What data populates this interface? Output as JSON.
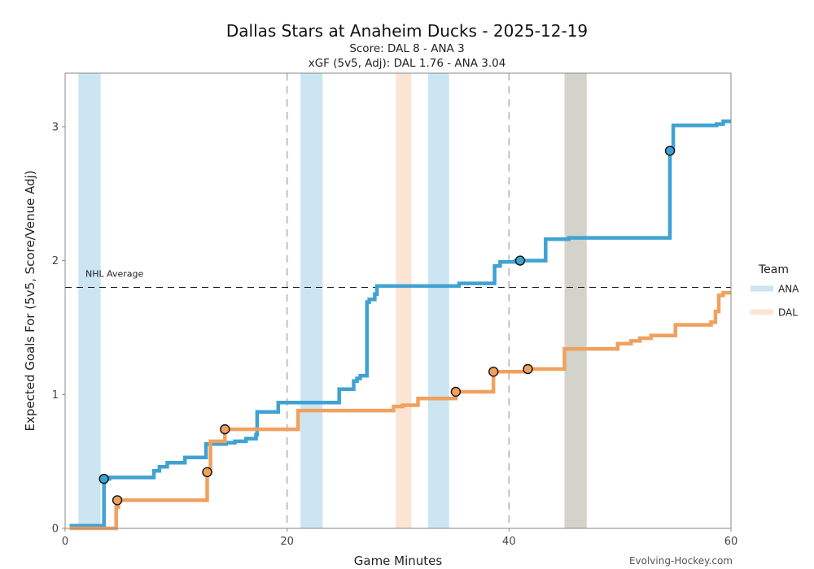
{
  "chart_data": {
    "type": "line",
    "title": "Dallas Stars at Anaheim Ducks - 2025-12-19",
    "subtitle_score": "Score: DAL 8 - ANA 3",
    "subtitle_xgf": "xGF (5v5, Adj): DAL 1.76 - ANA 3.04",
    "xlabel": "Game Minutes",
    "ylabel": "Expected Goals For (5v5, Score/Venue Adj)",
    "xlim": [
      0,
      60
    ],
    "ylim": [
      0,
      3.4
    ],
    "xticks": [
      0,
      20,
      40,
      60
    ],
    "yticks": [
      0,
      1,
      2,
      3
    ],
    "period_lines": [
      20,
      40
    ],
    "reference_line": {
      "y": 1.8,
      "label": "NHL Average"
    },
    "legend": {
      "title": "Team",
      "position": "right"
    },
    "source": "Evolving-Hockey.com",
    "shaded_intervals": [
      {
        "team": "ANA",
        "start": 1.2,
        "end": 3.2,
        "color": "#cce5f2"
      },
      {
        "team": "ANA",
        "start": 21.2,
        "end": 23.2,
        "color": "#cce5f2"
      },
      {
        "team": "DAL",
        "start": 29.8,
        "end": 31.2,
        "color": "#fbe4d4"
      },
      {
        "team": "ANA",
        "start": 32.7,
        "end": 34.6,
        "color": "#cce5f2"
      },
      {
        "team": "Other",
        "start": 45.0,
        "end": 47.0,
        "color": "#d3d3cc"
      }
    ],
    "series": [
      {
        "name": "ANA",
        "color": "#3fa2d3",
        "legend_color": "#cce5f2",
        "x": [
          0.4,
          3.5,
          3.5,
          4.0,
          4.0,
          4.8,
          4.8,
          8.0,
          8.0,
          8.5,
          8.5,
          9.2,
          9.2,
          10.8,
          10.8,
          12.7,
          12.7,
          14.5,
          14.5,
          15.3,
          15.3,
          16.3,
          16.3,
          17.2,
          17.2,
          17.3,
          17.3,
          19.2,
          19.2,
          24.7,
          24.7,
          26.0,
          26.0,
          26.3,
          26.3,
          26.6,
          26.6,
          27.2,
          27.2,
          27.4,
          27.4,
          27.9,
          27.9,
          28.1,
          28.1,
          35.5,
          35.5,
          38.7,
          38.7,
          39.2,
          39.2,
          40.6,
          40.6,
          43.3,
          43.3,
          45.4,
          45.4,
          54.5,
          54.5,
          54.8,
          54.8,
          58.7,
          58.7,
          59.3,
          59.3,
          60.0
        ],
        "y": [
          0.02,
          0.02,
          0.37,
          0.37,
          0.38,
          0.38,
          0.38,
          0.38,
          0.43,
          0.43,
          0.46,
          0.46,
          0.49,
          0.49,
          0.53,
          0.53,
          0.63,
          0.63,
          0.64,
          0.64,
          0.65,
          0.65,
          0.67,
          0.67,
          0.7,
          0.7,
          0.87,
          0.87,
          0.94,
          0.94,
          1.04,
          1.04,
          1.1,
          1.1,
          1.12,
          1.12,
          1.14,
          1.14,
          1.69,
          1.69,
          1.71,
          1.71,
          1.75,
          1.75,
          1.81,
          1.81,
          1.83,
          1.83,
          1.96,
          1.96,
          1.99,
          1.99,
          2.0,
          2.0,
          2.16,
          2.16,
          2.17,
          2.17,
          2.82,
          2.82,
          3.01,
          3.01,
          3.02,
          3.02,
          3.04,
          3.04
        ]
      },
      {
        "name": "DAL",
        "color": "#f0a15e",
        "legend_color": "#fbe4d4",
        "x": [
          0.4,
          4.6,
          4.6,
          4.8,
          4.8,
          12.8,
          12.8,
          13.1,
          13.1,
          14.4,
          14.4,
          21.0,
          21.0,
          29.6,
          29.6,
          30.4,
          30.4,
          31.8,
          31.8,
          35.2,
          35.2,
          38.6,
          38.6,
          39.2,
          39.2,
          41.6,
          41.6,
          45.0,
          45.0,
          49.8,
          49.8,
          51.0,
          51.0,
          51.8,
          51.8,
          52.8,
          52.8,
          55.0,
          55.0,
          58.2,
          58.2,
          58.6,
          58.6,
          58.9,
          58.9,
          59.3,
          59.3,
          60.0
        ],
        "y": [
          0.0,
          0.0,
          0.16,
          0.16,
          0.21,
          0.21,
          0.42,
          0.42,
          0.65,
          0.65,
          0.74,
          0.74,
          0.88,
          0.88,
          0.91,
          0.91,
          0.92,
          0.92,
          0.97,
          0.97,
          1.02,
          1.02,
          1.17,
          1.17,
          1.17,
          1.17,
          1.19,
          1.19,
          1.34,
          1.34,
          1.38,
          1.38,
          1.4,
          1.4,
          1.42,
          1.42,
          1.44,
          1.44,
          1.52,
          1.52,
          1.54,
          1.54,
          1.62,
          1.62,
          1.74,
          1.74,
          1.76,
          1.76
        ]
      }
    ],
    "goals": [
      {
        "team": "ANA",
        "x": 3.5,
        "y": 0.37
      },
      {
        "team": "ANA",
        "x": 41.0,
        "y": 2.0
      },
      {
        "team": "ANA",
        "x": 54.5,
        "y": 2.82
      },
      {
        "team": "DAL",
        "x": 4.7,
        "y": 0.21
      },
      {
        "team": "DAL",
        "x": 12.8,
        "y": 0.42
      },
      {
        "team": "DAL",
        "x": 14.4,
        "y": 0.74
      },
      {
        "team": "DAL",
        "x": 35.2,
        "y": 1.02
      },
      {
        "team": "DAL",
        "x": 38.6,
        "y": 1.17
      },
      {
        "team": "DAL",
        "x": 41.7,
        "y": 1.19
      }
    ]
  }
}
